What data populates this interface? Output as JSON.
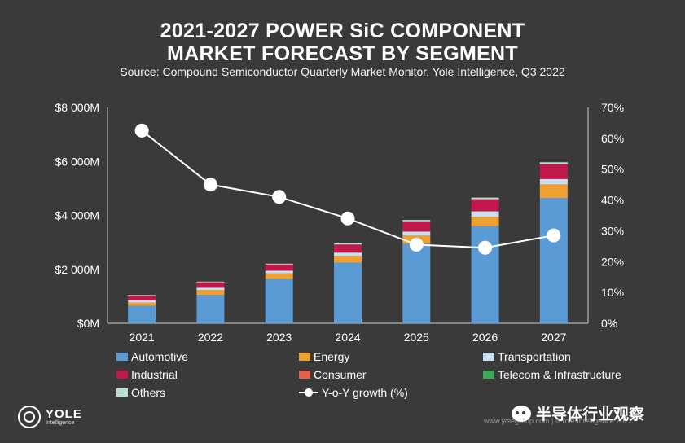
{
  "header": {
    "title_line1": "2021-2027 POWER SiC COMPONENT",
    "title_line2": "MARKET FORECAST BY SEGMENT",
    "source": "Source: Compound Semiconductor Quarterly Market Monitor, Yole Intelligence, Q3 2022"
  },
  "chart_data": {
    "type": "bar",
    "stacked": true,
    "categories": [
      "2021",
      "2022",
      "2023",
      "2024",
      "2025",
      "2026",
      "2027"
    ],
    "y_left": {
      "ticks": [
        "$0M",
        "$2 000M",
        "$4 000M",
        "$6 000M",
        "$8 000M"
      ],
      "range": [
        0,
        8000
      ],
      "unit": "$M"
    },
    "y_right": {
      "ticks": [
        "0%",
        "10%",
        "20%",
        "30%",
        "40%",
        "50%",
        "60%",
        "70%"
      ],
      "range": [
        0,
        70
      ],
      "unit": "%"
    },
    "grid": false,
    "legend_position": "bottom",
    "series": [
      {
        "name": "Automotive",
        "color": "#5b9bd5",
        "values": [
          650,
          1050,
          1650,
          2250,
          2950,
          3600,
          4650
        ]
      },
      {
        "name": "Energy",
        "color": "#f0a030",
        "values": [
          120,
          180,
          200,
          250,
          300,
          350,
          500
        ]
      },
      {
        "name": "Transportation",
        "color": "#c9dff2",
        "values": [
          80,
          90,
          100,
          120,
          150,
          200,
          200
        ]
      },
      {
        "name": "Industrial",
        "color": "#c0184a",
        "values": [
          180,
          200,
          230,
          300,
          380,
          450,
          550
        ]
      },
      {
        "name": "Consumer",
        "color": "#e8604c",
        "values": [
          0,
          0,
          0,
          0,
          0,
          0,
          0
        ]
      },
      {
        "name": "Telecom & Infrastructure",
        "color": "#3aaa5a",
        "values": [
          0,
          0,
          0,
          0,
          0,
          0,
          0
        ]
      },
      {
        "name": "Others",
        "color": "#b8e0cf",
        "values": [
          20,
          25,
          30,
          40,
          50,
          60,
          70
        ]
      }
    ],
    "line_series": {
      "name": "Y-o-Y growth (%)",
      "color": "#ffffff",
      "axis": "right",
      "values": [
        62.5,
        45,
        41,
        34,
        25.5,
        24.5,
        28.5
      ]
    }
  },
  "legend": [
    {
      "name": "Automotive",
      "color": "#5b9bd5",
      "kind": "bar"
    },
    {
      "name": "Energy",
      "color": "#f0a030",
      "kind": "bar"
    },
    {
      "name": "Transportation",
      "color": "#c9dff2",
      "kind": "bar"
    },
    {
      "name": "Industrial",
      "color": "#c0184a",
      "kind": "bar"
    },
    {
      "name": "Consumer",
      "color": "#e8604c",
      "kind": "bar"
    },
    {
      "name": "Telecom & Infrastructure",
      "color": "#3aaa5a",
      "kind": "bar"
    },
    {
      "name": "Others",
      "color": "#b8e0cf",
      "kind": "bar"
    },
    {
      "name": "Y-o-Y growth (%)",
      "color": "#ffffff",
      "kind": "line"
    }
  ],
  "footer": {
    "logo_name": "YOLE",
    "logo_sub": "Intelligence",
    "url": "www.yolegroup.com | ©Yole Intelligence 2022",
    "watermark": "半导体行业观察"
  }
}
